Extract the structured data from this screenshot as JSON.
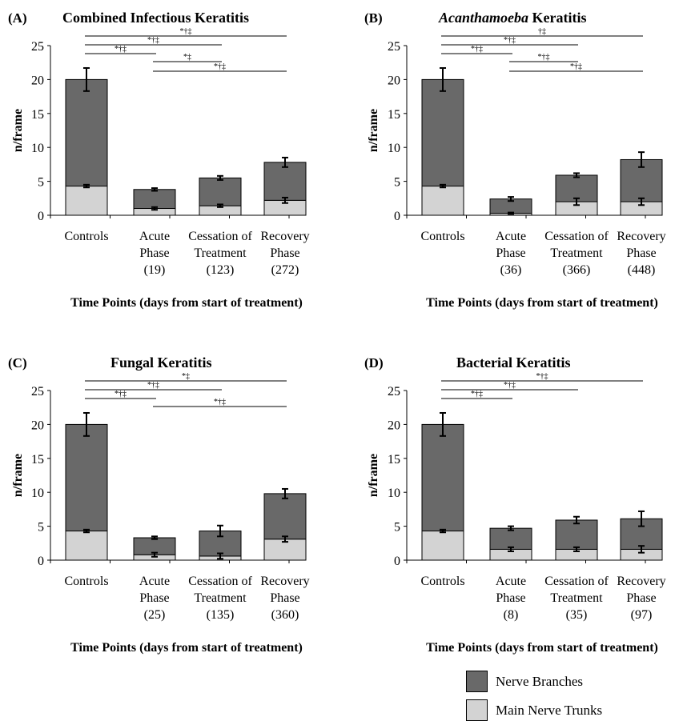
{
  "chart_data": [
    {
      "type": "bar",
      "panel_letter": "(A)",
      "title": "Combined Infectious Keratitis",
      "title_italic_part": "",
      "ylabel": "n/frame",
      "xlabel": "Time Points (days from start of treatment)",
      "categories": [
        [
          "Controls"
        ],
        [
          "Acute",
          "Phase",
          "(19)"
        ],
        [
          "Cessation of",
          "Treatment",
          "(123)"
        ],
        [
          "Recovery",
          "Phase",
          "(272)"
        ]
      ],
      "yticks": [
        0,
        5,
        10,
        15,
        20,
        25
      ],
      "ylim": [
        0,
        25
      ],
      "series": [
        {
          "name": "Main Nerve Trunks",
          "values": [
            4.3,
            1.0,
            1.4,
            2.2
          ],
          "errors": [
            0.2,
            0.2,
            0.2,
            0.4
          ]
        },
        {
          "name": "Nerve Branches",
          "values": [
            15.7,
            2.8,
            4.1,
            5.6
          ],
          "errors": [
            1.7,
            0.2,
            0.3,
            0.7
          ]
        }
      ],
      "significance": [
        {
          "from": 0,
          "to": 3,
          "label": "*†‡"
        },
        {
          "from": 0,
          "to": 2,
          "label": "*†‡"
        },
        {
          "from": 0,
          "to": 1,
          "label": "*†‡"
        },
        {
          "from": 1,
          "to": 2,
          "label": "*‡"
        },
        {
          "from": 1,
          "to": 3,
          "label": "*†‡"
        }
      ]
    },
    {
      "type": "bar",
      "panel_letter": "(B)",
      "title": " Keratitis",
      "title_italic_part": "Acanthamoeba",
      "ylabel": "n/frame",
      "xlabel": "Time Points (days from start of treatment)",
      "categories": [
        [
          "Controls"
        ],
        [
          "Acute",
          "Phase",
          "(36)"
        ],
        [
          "Cessation of",
          "Treatment",
          "(366)"
        ],
        [
          "Recovery",
          "Phase",
          "(448)"
        ]
      ],
      "yticks": [
        0,
        5,
        10,
        15,
        20,
        25
      ],
      "ylim": [
        0,
        25
      ],
      "series": [
        {
          "name": "Main Nerve Trunks",
          "values": [
            4.3,
            0.3,
            2.0,
            2.0
          ],
          "errors": [
            0.2,
            0.1,
            0.5,
            0.5
          ]
        },
        {
          "name": "Nerve Branches",
          "values": [
            15.7,
            2.1,
            3.9,
            6.2
          ],
          "errors": [
            1.7,
            0.3,
            0.3,
            1.1
          ]
        }
      ],
      "significance": [
        {
          "from": 0,
          "to": 3,
          "label": "†‡"
        },
        {
          "from": 0,
          "to": 2,
          "label": "*†‡"
        },
        {
          "from": 0,
          "to": 1,
          "label": "*†‡"
        },
        {
          "from": 1,
          "to": 2,
          "label": "*†‡"
        },
        {
          "from": 1,
          "to": 3,
          "label": "*†‡"
        }
      ]
    },
    {
      "type": "bar",
      "panel_letter": "(C)",
      "title": "Fungal Keratitis",
      "title_italic_part": "",
      "ylabel": "n/frame",
      "xlabel": "Time Points (days from start of treatment)",
      "categories": [
        [
          "Controls"
        ],
        [
          "Acute",
          "Phase",
          "(25)"
        ],
        [
          "Cessation of",
          "Treatment",
          "(135)"
        ],
        [
          "Recovery",
          "Phase",
          "(360)"
        ]
      ],
      "yticks": [
        0,
        5,
        10,
        15,
        20,
        25
      ],
      "ylim": [
        0,
        25
      ],
      "series": [
        {
          "name": "Main Nerve Trunks",
          "values": [
            4.3,
            0.8,
            0.6,
            3.1
          ],
          "errors": [
            0.2,
            0.3,
            0.4,
            0.4
          ]
        },
        {
          "name": "Nerve Branches",
          "values": [
            15.7,
            2.5,
            3.7,
            6.7
          ],
          "errors": [
            1.7,
            0.2,
            0.8,
            0.7
          ]
        }
      ],
      "significance": [
        {
          "from": 0,
          "to": 3,
          "label": "*‡"
        },
        {
          "from": 0,
          "to": 2,
          "label": "*†‡"
        },
        {
          "from": 0,
          "to": 1,
          "label": "*†‡"
        },
        {
          "from": 1,
          "to": 3,
          "label": "*†‡"
        }
      ]
    },
    {
      "type": "bar",
      "panel_letter": "(D)",
      "title": "Bacterial Keratitis",
      "title_italic_part": "",
      "ylabel": "n/frame",
      "xlabel": "Time Points (days from start of treatment)",
      "categories": [
        [
          "Controls"
        ],
        [
          "Acute",
          "Phase",
          "(8)"
        ],
        [
          "Cessation of",
          "Treatment",
          "(35)"
        ],
        [
          "Recovery",
          "Phase",
          "(97)"
        ]
      ],
      "yticks": [
        0,
        5,
        10,
        15,
        20,
        25
      ],
      "ylim": [
        0,
        25
      ],
      "series": [
        {
          "name": "Main Nerve Trunks",
          "values": [
            4.3,
            1.6,
            1.6,
            1.6
          ],
          "errors": [
            0.2,
            0.3,
            0.3,
            0.5
          ]
        },
        {
          "name": "Nerve Branches",
          "values": [
            15.7,
            3.1,
            4.3,
            4.5
          ],
          "errors": [
            1.7,
            0.3,
            0.5,
            1.1
          ]
        }
      ],
      "significance": [
        {
          "from": 0,
          "to": 3,
          "label": "*†‡"
        },
        {
          "from": 0,
          "to": 2,
          "label": "*†‡"
        },
        {
          "from": 0,
          "to": 1,
          "label": "*†‡"
        }
      ]
    }
  ],
  "legend": {
    "items": [
      {
        "label": "Nerve Branches",
        "color": "#696969"
      },
      {
        "label": "Main Nerve Trunks",
        "color": "#d3d3d3"
      }
    ]
  },
  "colors": {
    "nerve_branches": "#696969",
    "main_nerve_trunks": "#d3d3d3",
    "outline": "#000000"
  }
}
